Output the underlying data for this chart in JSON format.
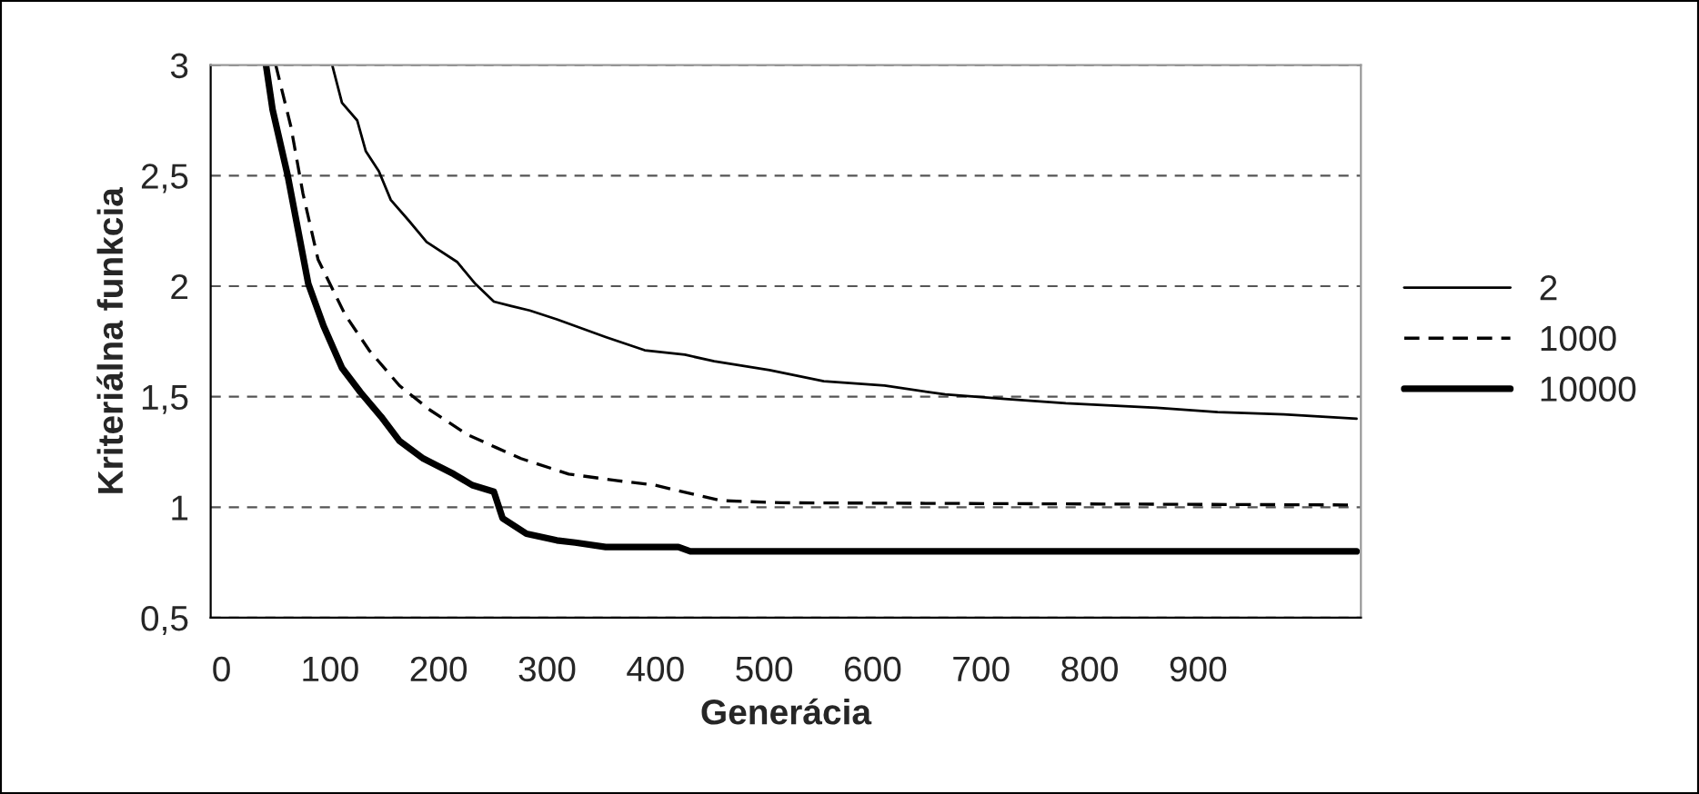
{
  "chart_data": {
    "type": "line",
    "xlabel": "Generácia",
    "ylabel": "Kriteriálna funkcia",
    "xlim": [
      -10,
      1050
    ],
    "xticks": [
      0,
      100,
      200,
      300,
      400,
      500,
      600,
      700,
      800,
      900
    ],
    "ylim": [
      0.5,
      3
    ],
    "yticks": [
      {
        "value": 0.5,
        "label": "0,5"
      },
      1,
      {
        "value": 1.5,
        "label": "1,5"
      },
      2,
      {
        "value": 2.5,
        "label": "2,5"
      },
      3
    ],
    "grid": "y",
    "legend": "right",
    "series": [
      {
        "name": "2",
        "color": "#000000",
        "line_style": "solid",
        "x": [
          102,
          111,
          125,
          133,
          145,
          156,
          172,
          189,
          217,
          234,
          251,
          267,
          284,
          309,
          354,
          390,
          427,
          454,
          505,
          555,
          611,
          667,
          722,
          778,
          862,
          918,
          979,
          1046
        ],
        "values": [
          3,
          2.83,
          2.75,
          2.61,
          2.52,
          2.39,
          2.3,
          2.2,
          2.11,
          2.01,
          1.93,
          1.91,
          1.89,
          1.85,
          1.77,
          1.71,
          1.69,
          1.66,
          1.62,
          1.57,
          1.55,
          1.51,
          1.49,
          1.47,
          1.45,
          1.43,
          1.42,
          1.4
        ]
      },
      {
        "name": "1000",
        "color": "#000000",
        "line_style": "dashed",
        "x": [
          50,
          64,
          75,
          89,
          114,
          136,
          164,
          192,
          226,
          253,
          276,
          320,
          365,
          399,
          460,
          516,
          1046
        ],
        "values": [
          3,
          2.72,
          2.42,
          2.12,
          1.87,
          1.71,
          1.55,
          1.44,
          1.33,
          1.27,
          1.22,
          1.15,
          1.12,
          1.1,
          1.03,
          1.02,
          1.01
        ]
      },
      {
        "name": "10000",
        "color": "#000000",
        "line_style": "solid",
        "x": [
          41,
          47,
          61,
          80,
          94,
          111,
          128,
          147,
          164,
          186,
          214,
          231,
          251,
          259,
          281,
          309,
          326,
          354,
          421,
          432,
          1046
        ],
        "values": [
          3,
          2.8,
          2.5,
          2.01,
          1.82,
          1.63,
          1.52,
          1.41,
          1.3,
          1.22,
          1.15,
          1.1,
          1.07,
          0.95,
          0.88,
          0.85,
          0.84,
          0.82,
          0.82,
          0.8,
          0.8
        ]
      }
    ]
  }
}
